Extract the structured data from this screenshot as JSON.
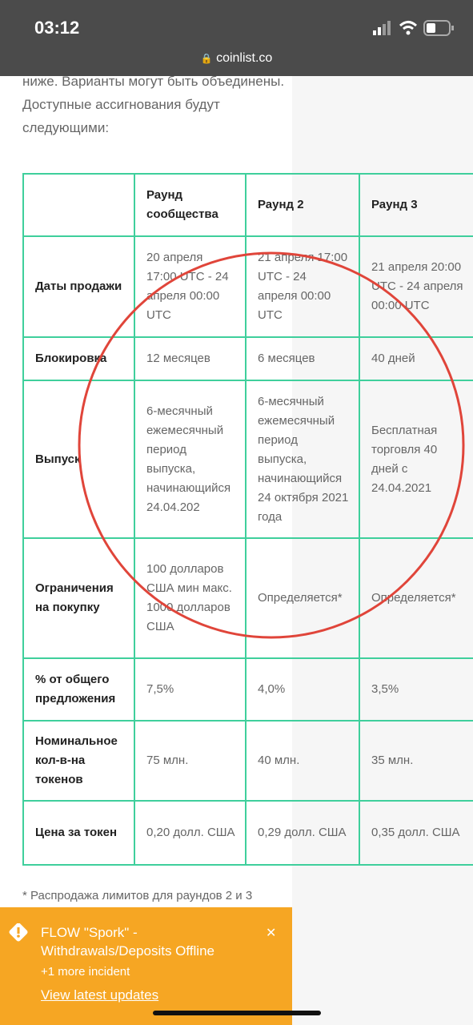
{
  "status_bar": {
    "time": "03:12",
    "url": "coinlist.co"
  },
  "intro": "ниже. Варианты могут быть объединены. Доступные ассигнования будут следующими:",
  "table": {
    "header": [
      "Раунд сообщества",
      "Раунд 2",
      "Раунд 3"
    ],
    "rows": [
      [
        "Даты продажи",
        "20 апреля 17:00 UTC - 24 апреля 00:00 UTC",
        "21 апреля 17:00 UTC - 24 апреля 00:00 UTC",
        "21 апреля 20:00 UTC - 24 апреля 00:00 UTC"
      ],
      [
        "Блокировка",
        "12 месяцев",
        "6 месяцев",
        "40 дней"
      ],
      [
        "Выпуск",
        "6-месячный ежемесячный период выпуска, начинающийся 24.04.202",
        "6-месячный ежемесячный период выпуска, начинающийся 24 октября 2021 года",
        "Бесплатная торговля 40 дней с 24.04.2021"
      ],
      [
        "Ограничения на покупку",
        "100 долларов США мин макс. 1000 долларов США",
        "Определяется*",
        "Определяется*"
      ],
      [
        "% от общего предложения",
        "7,5%",
        "4,0%",
        "3,5%"
      ],
      [
        "Номинальное кол-в-на токенов",
        "75 млн.",
        "40 млн.",
        "35 млн."
      ],
      [
        "Цена за токен",
        "0,20 долл. США",
        "0,29 долл. США",
        "0,35 долл. США"
      ]
    ]
  },
  "footnote": "* Распродажа лимитов для раундов 2 и 3",
  "banner": {
    "title": "FLOW \"Spork\" - Withdrawals/Deposits Offline",
    "subtitle": "+1 more incident",
    "link": "View latest updates"
  }
}
